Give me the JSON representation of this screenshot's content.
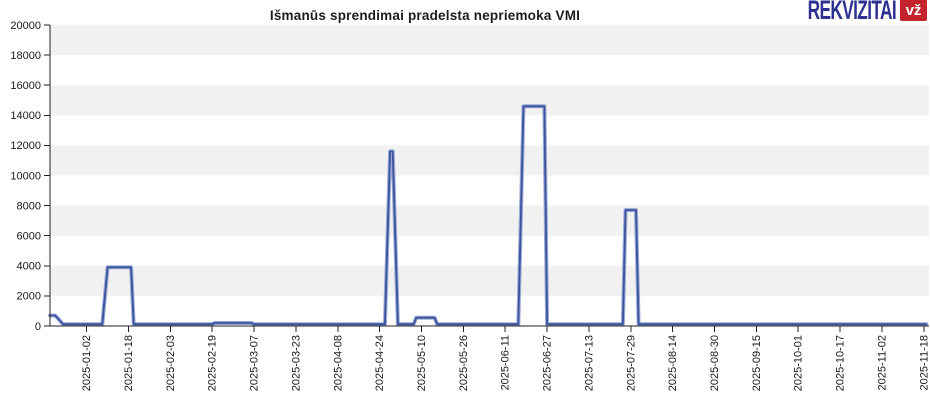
{
  "logo": {
    "brand": "REKVIZITAI",
    "badge": "vž",
    "brand_color": "#2d3192",
    "badge_color": "#c4232b"
  },
  "chart_data": {
    "type": "line",
    "title": "Išmanūs sprendimai pradelsta nepriemoka VMI",
    "xlabel": "",
    "ylabel": "",
    "ylim": [
      0,
      20000
    ],
    "y_ticks": [
      0,
      2000,
      4000,
      6000,
      8000,
      10000,
      12000,
      14000,
      16000,
      18000,
      20000
    ],
    "x_range": [
      "2024-12-19",
      "2025-11-20"
    ],
    "x_tick_labels": [
      "2025-01-02",
      "2025-01-18",
      "2025-02-03",
      "2025-02-19",
      "2025-03-07",
      "2025-03-23",
      "2025-04-08",
      "2025-04-24",
      "2025-05-10",
      "2025-05-26",
      "2025-06-11",
      "2025-06-27",
      "2025-07-13",
      "2025-07-29",
      "2025-08-14",
      "2025-08-30",
      "2025-09-15",
      "2025-10-01",
      "2025-10-17",
      "2025-11-02",
      "2025-11-18"
    ],
    "grid": "alternating-horizontal-bands",
    "legend": "none",
    "band_color": "#f1f1f2",
    "axis_color": "#222222",
    "tick_label_color": "#1a1a1a",
    "line_color": "#3953a0",
    "line_halo_color": "#9aa8d2",
    "series": [
      {
        "points": [
          [
            "2024-12-19",
            700
          ],
          [
            "2024-12-21",
            700
          ],
          [
            "2024-12-24",
            120
          ],
          [
            "2025-01-08",
            120
          ],
          [
            "2025-01-10",
            3900
          ],
          [
            "2025-01-19",
            3900
          ],
          [
            "2025-01-20",
            120
          ],
          [
            "2025-02-19",
            120
          ],
          [
            "2025-02-20",
            200
          ],
          [
            "2025-03-06",
            200
          ],
          [
            "2025-03-07",
            120
          ],
          [
            "2025-04-26",
            120
          ],
          [
            "2025-04-28",
            11600
          ],
          [
            "2025-04-29",
            11600
          ],
          [
            "2025-05-01",
            120
          ],
          [
            "2025-05-07",
            120
          ],
          [
            "2025-05-08",
            550
          ],
          [
            "2025-05-15",
            550
          ],
          [
            "2025-05-16",
            120
          ],
          [
            "2025-06-16",
            120
          ],
          [
            "2025-06-18",
            14600
          ],
          [
            "2025-06-26",
            14600
          ],
          [
            "2025-06-27",
            120
          ],
          [
            "2025-07-26",
            120
          ],
          [
            "2025-07-27",
            7700
          ],
          [
            "2025-07-31",
            7700
          ],
          [
            "2025-08-01",
            120
          ],
          [
            "2025-11-19",
            120
          ]
        ]
      }
    ]
  }
}
